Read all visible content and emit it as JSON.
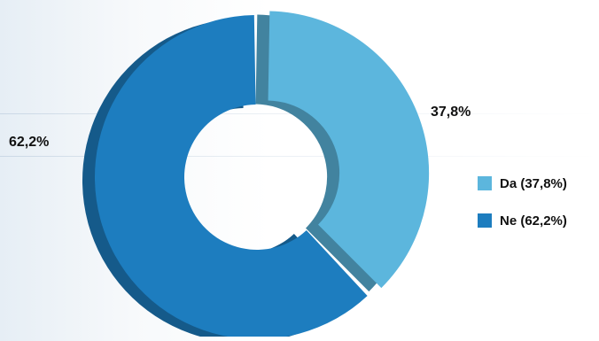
{
  "chart_data": {
    "type": "pie",
    "title": "",
    "categories": [
      "Da",
      "Ne"
    ],
    "values": [
      37.8,
      62.2
    ],
    "unit": "%",
    "data_labels": [
      "37,8%",
      "62,2%"
    ],
    "legend": {
      "placement": "right",
      "entries": [
        "Da (37,8%)",
        "Ne (62,2%)"
      ]
    },
    "colors": {
      "Da": "#5cb6dd",
      "Ne": "#1d7dbf"
    },
    "style": "3d-donut, exploded"
  }
}
